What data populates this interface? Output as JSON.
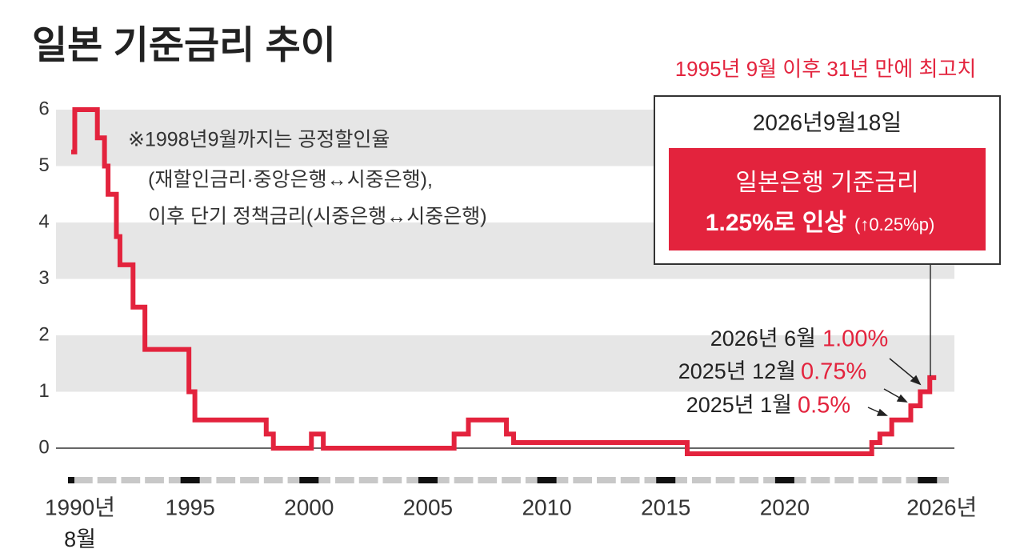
{
  "chart_data": {
    "type": "line",
    "step": "after",
    "title": "일본 기준금리 추이",
    "headline": "1995년 9월 이후 31년 만에 최고치",
    "note": [
      "※1998년9월까지는 공정할인율",
      "(재할인금리·중앙은행↔시중은행),",
      "이후 단기 정책금리(시중은행↔시중은행)"
    ],
    "box_date": "2026년9월18일",
    "box_title": "일본은행 기준금리",
    "box_rate": "1.25%로 인상",
    "box_change": "(↑0.25%p)",
    "callouts": [
      {
        "label": "2026년 6월",
        "rate": "1.00%"
      },
      {
        "label": "2025년 12월",
        "rate": "0.75%"
      },
      {
        "label": "2025년 1월",
        "rate": "0.5%"
      }
    ],
    "x_start_note": "8월",
    "x": [
      1990.0,
      1990.15,
      1991.1,
      1991.4,
      1991.55,
      1991.9,
      1992.05,
      1992.6,
      1993.1,
      1994.95,
      1995.2,
      1998.2,
      1998.5,
      2000.1,
      2000.6,
      2006.1,
      2006.7,
      2008.3,
      2008.6,
      2015.9,
      2023.66,
      2024.0,
      2024.5,
      2025.3,
      2025.7,
      2026.1
    ],
    "series": [
      {
        "name": "기준금리",
        "color": "#e3233d",
        "values": [
          5.25,
          6,
          5.5,
          5.0,
          4.5,
          3.75,
          3.25,
          2.5,
          1.75,
          1.0,
          0.5,
          0.25,
          0,
          0.25,
          0,
          0.25,
          0.5,
          0.25,
          0.1,
          -0.1,
          0.1,
          0.25,
          0.5,
          0.75,
          1.0,
          1.25
        ]
      }
    ],
    "xlim": [
      1990,
      2027
    ],
    "xticks": [
      {
        "value": 1990,
        "label": "1990년"
      },
      1995,
      2000,
      2005,
      2010,
      2015,
      2020,
      {
        "value": 2026,
        "label": "2026년"
      }
    ],
    "ylim": [
      0,
      6
    ],
    "yticks": [
      0,
      1,
      2,
      3,
      4,
      5,
      6
    ],
    "grid": "bands",
    "band_color": "#e6e6e6"
  }
}
